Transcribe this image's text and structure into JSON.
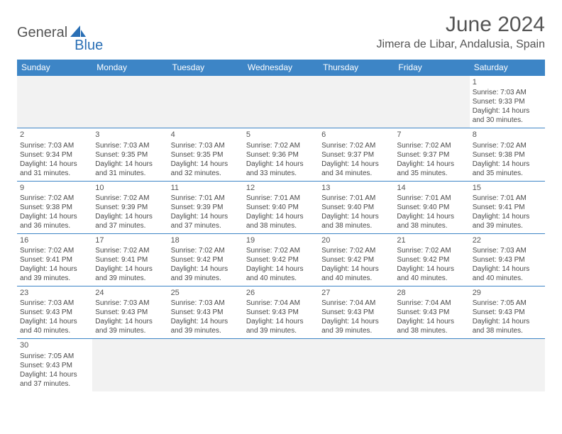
{
  "logo": {
    "general": "General",
    "blue": "Blue"
  },
  "title": "June 2024",
  "location": "Jimera de Libar, Andalusia, Spain",
  "colors": {
    "header_bg": "#3d85c6",
    "header_text": "#ffffff",
    "grid_line": "#3d85c6",
    "blank_bg": "#f2f2f2",
    "text": "#4a4a4a",
    "title_text": "#555555"
  },
  "weekdays": [
    "Sunday",
    "Monday",
    "Tuesday",
    "Wednesday",
    "Thursday",
    "Friday",
    "Saturday"
  ],
  "days": {
    "1": {
      "sunrise": "7:03 AM",
      "sunset": "9:33 PM",
      "daylight": "14 hours and 30 minutes."
    },
    "2": {
      "sunrise": "7:03 AM",
      "sunset": "9:34 PM",
      "daylight": "14 hours and 31 minutes."
    },
    "3": {
      "sunrise": "7:03 AM",
      "sunset": "9:35 PM",
      "daylight": "14 hours and 31 minutes."
    },
    "4": {
      "sunrise": "7:03 AM",
      "sunset": "9:35 PM",
      "daylight": "14 hours and 32 minutes."
    },
    "5": {
      "sunrise": "7:02 AM",
      "sunset": "9:36 PM",
      "daylight": "14 hours and 33 minutes."
    },
    "6": {
      "sunrise": "7:02 AM",
      "sunset": "9:37 PM",
      "daylight": "14 hours and 34 minutes."
    },
    "7": {
      "sunrise": "7:02 AM",
      "sunset": "9:37 PM",
      "daylight": "14 hours and 35 minutes."
    },
    "8": {
      "sunrise": "7:02 AM",
      "sunset": "9:38 PM",
      "daylight": "14 hours and 35 minutes."
    },
    "9": {
      "sunrise": "7:02 AM",
      "sunset": "9:38 PM",
      "daylight": "14 hours and 36 minutes."
    },
    "10": {
      "sunrise": "7:02 AM",
      "sunset": "9:39 PM",
      "daylight": "14 hours and 37 minutes."
    },
    "11": {
      "sunrise": "7:01 AM",
      "sunset": "9:39 PM",
      "daylight": "14 hours and 37 minutes."
    },
    "12": {
      "sunrise": "7:01 AM",
      "sunset": "9:40 PM",
      "daylight": "14 hours and 38 minutes."
    },
    "13": {
      "sunrise": "7:01 AM",
      "sunset": "9:40 PM",
      "daylight": "14 hours and 38 minutes."
    },
    "14": {
      "sunrise": "7:01 AM",
      "sunset": "9:40 PM",
      "daylight": "14 hours and 38 minutes."
    },
    "15": {
      "sunrise": "7:01 AM",
      "sunset": "9:41 PM",
      "daylight": "14 hours and 39 minutes."
    },
    "16": {
      "sunrise": "7:02 AM",
      "sunset": "9:41 PM",
      "daylight": "14 hours and 39 minutes."
    },
    "17": {
      "sunrise": "7:02 AM",
      "sunset": "9:41 PM",
      "daylight": "14 hours and 39 minutes."
    },
    "18": {
      "sunrise": "7:02 AM",
      "sunset": "9:42 PM",
      "daylight": "14 hours and 39 minutes."
    },
    "19": {
      "sunrise": "7:02 AM",
      "sunset": "9:42 PM",
      "daylight": "14 hours and 40 minutes."
    },
    "20": {
      "sunrise": "7:02 AM",
      "sunset": "9:42 PM",
      "daylight": "14 hours and 40 minutes."
    },
    "21": {
      "sunrise": "7:02 AM",
      "sunset": "9:42 PM",
      "daylight": "14 hours and 40 minutes."
    },
    "22": {
      "sunrise": "7:03 AM",
      "sunset": "9:43 PM",
      "daylight": "14 hours and 40 minutes."
    },
    "23": {
      "sunrise": "7:03 AM",
      "sunset": "9:43 PM",
      "daylight": "14 hours and 40 minutes."
    },
    "24": {
      "sunrise": "7:03 AM",
      "sunset": "9:43 PM",
      "daylight": "14 hours and 39 minutes."
    },
    "25": {
      "sunrise": "7:03 AM",
      "sunset": "9:43 PM",
      "daylight": "14 hours and 39 minutes."
    },
    "26": {
      "sunrise": "7:04 AM",
      "sunset": "9:43 PM",
      "daylight": "14 hours and 39 minutes."
    },
    "27": {
      "sunrise": "7:04 AM",
      "sunset": "9:43 PM",
      "daylight": "14 hours and 39 minutes."
    },
    "28": {
      "sunrise": "7:04 AM",
      "sunset": "9:43 PM",
      "daylight": "14 hours and 38 minutes."
    },
    "29": {
      "sunrise": "7:05 AM",
      "sunset": "9:43 PM",
      "daylight": "14 hours and 38 minutes."
    },
    "30": {
      "sunrise": "7:05 AM",
      "sunset": "9:43 PM",
      "daylight": "14 hours and 37 minutes."
    }
  },
  "labels": {
    "sunrise_prefix": "Sunrise: ",
    "sunset_prefix": "Sunset: ",
    "daylight_prefix": "Daylight: "
  },
  "layout": {
    "first_weekday_index": 6,
    "num_days": 30
  }
}
